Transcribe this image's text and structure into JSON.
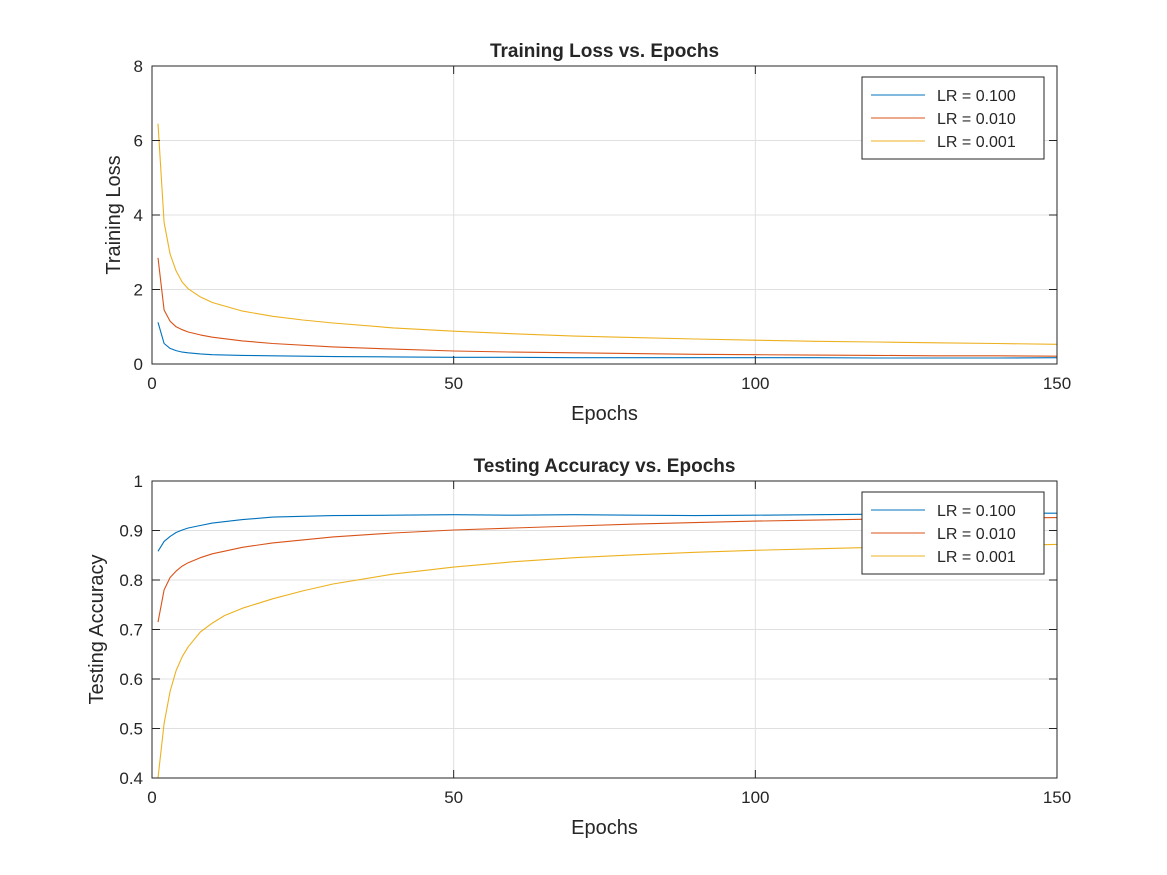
{
  "colors": {
    "lr_0100": "#0072BD",
    "lr_0010": "#D95319",
    "lr_0001": "#EDB120",
    "grid": "#E0E0E0",
    "axis": "#262626"
  },
  "chart_data": [
    {
      "type": "line",
      "title": "Training Loss vs. Epochs",
      "xlabel": "Epochs",
      "ylabel": "Training Loss",
      "xlim": [
        0,
        150
      ],
      "ylim": [
        0,
        8
      ],
      "xticks": [
        "0",
        "50",
        "100",
        "150"
      ],
      "yticks": [
        "0",
        "2",
        "4",
        "6",
        "8"
      ],
      "grid": true,
      "legend_position": "top-right",
      "series": [
        {
          "name": "LR = 0.100",
          "color": "#0072BD",
          "x": [
            1,
            2,
            3,
            4,
            5,
            6,
            8,
            10,
            15,
            20,
            30,
            40,
            50,
            60,
            70,
            80,
            90,
            100,
            110,
            120,
            130,
            140,
            150
          ],
          "y": [
            1.12,
            0.55,
            0.42,
            0.36,
            0.32,
            0.3,
            0.27,
            0.25,
            0.23,
            0.22,
            0.2,
            0.19,
            0.18,
            0.18,
            0.17,
            0.17,
            0.17,
            0.17,
            0.17,
            0.16,
            0.16,
            0.16,
            0.17
          ]
        },
        {
          "name": "LR = 0.010",
          "color": "#D95319",
          "x": [
            1,
            2,
            3,
            4,
            5,
            6,
            8,
            10,
            15,
            20,
            30,
            40,
            50,
            60,
            70,
            80,
            90,
            100,
            110,
            120,
            130,
            140,
            150
          ],
          "y": [
            2.85,
            1.45,
            1.15,
            1.0,
            0.92,
            0.86,
            0.78,
            0.72,
            0.62,
            0.55,
            0.46,
            0.4,
            0.35,
            0.32,
            0.3,
            0.28,
            0.26,
            0.25,
            0.24,
            0.23,
            0.22,
            0.22,
            0.21
          ]
        },
        {
          "name": "LR = 0.001",
          "color": "#EDB120",
          "x": [
            1,
            2,
            3,
            4,
            5,
            6,
            8,
            10,
            15,
            20,
            25,
            30,
            40,
            50,
            60,
            70,
            80,
            90,
            100,
            110,
            120,
            130,
            140,
            150
          ],
          "y": [
            6.45,
            3.8,
            2.95,
            2.5,
            2.2,
            2.02,
            1.8,
            1.65,
            1.42,
            1.28,
            1.18,
            1.1,
            0.97,
            0.88,
            0.81,
            0.75,
            0.71,
            0.67,
            0.64,
            0.61,
            0.59,
            0.57,
            0.55,
            0.53
          ]
        }
      ]
    },
    {
      "type": "line",
      "title": "Testing Accuracy vs. Epochs",
      "xlabel": "Epochs",
      "ylabel": "Testing Accuracy",
      "xlim": [
        0,
        150
      ],
      "ylim": [
        0.4,
        1
      ],
      "xticks": [
        "0",
        "50",
        "100",
        "150"
      ],
      "yticks": [
        "0.4",
        "0.5",
        "0.6",
        "0.7",
        "0.8",
        "0.9",
        "1"
      ],
      "grid": true,
      "legend_position": "top-right",
      "series": [
        {
          "name": "LR = 0.100",
          "color": "#0072BD",
          "x": [
            1,
            2,
            3,
            4,
            5,
            6,
            8,
            10,
            15,
            20,
            30,
            40,
            50,
            60,
            70,
            80,
            90,
            100,
            110,
            120,
            130,
            140,
            150
          ],
          "y": [
            0.858,
            0.878,
            0.888,
            0.896,
            0.901,
            0.905,
            0.91,
            0.915,
            0.922,
            0.927,
            0.93,
            0.931,
            0.932,
            0.931,
            0.932,
            0.931,
            0.93,
            0.931,
            0.932,
            0.933,
            0.934,
            0.935,
            0.935
          ]
        },
        {
          "name": "LR = 0.010",
          "color": "#D95319",
          "x": [
            1,
            2,
            3,
            4,
            5,
            6,
            8,
            10,
            15,
            20,
            30,
            40,
            50,
            60,
            70,
            80,
            90,
            100,
            110,
            120,
            130,
            140,
            150
          ],
          "y": [
            0.715,
            0.78,
            0.805,
            0.818,
            0.828,
            0.835,
            0.845,
            0.853,
            0.866,
            0.875,
            0.887,
            0.895,
            0.901,
            0.905,
            0.909,
            0.913,
            0.916,
            0.919,
            0.921,
            0.923,
            0.924,
            0.925,
            0.926
          ]
        },
        {
          "name": "LR = 0.001",
          "color": "#EDB120",
          "x": [
            1,
            2,
            3,
            4,
            5,
            6,
            8,
            10,
            12,
            15,
            20,
            25,
            30,
            40,
            50,
            60,
            70,
            80,
            90,
            100,
            110,
            120,
            130,
            140,
            150
          ],
          "y": [
            0.4,
            0.51,
            0.575,
            0.617,
            0.645,
            0.665,
            0.695,
            0.713,
            0.728,
            0.743,
            0.762,
            0.778,
            0.792,
            0.812,
            0.826,
            0.837,
            0.845,
            0.851,
            0.856,
            0.86,
            0.863,
            0.866,
            0.868,
            0.87,
            0.872
          ]
        }
      ]
    }
  ]
}
